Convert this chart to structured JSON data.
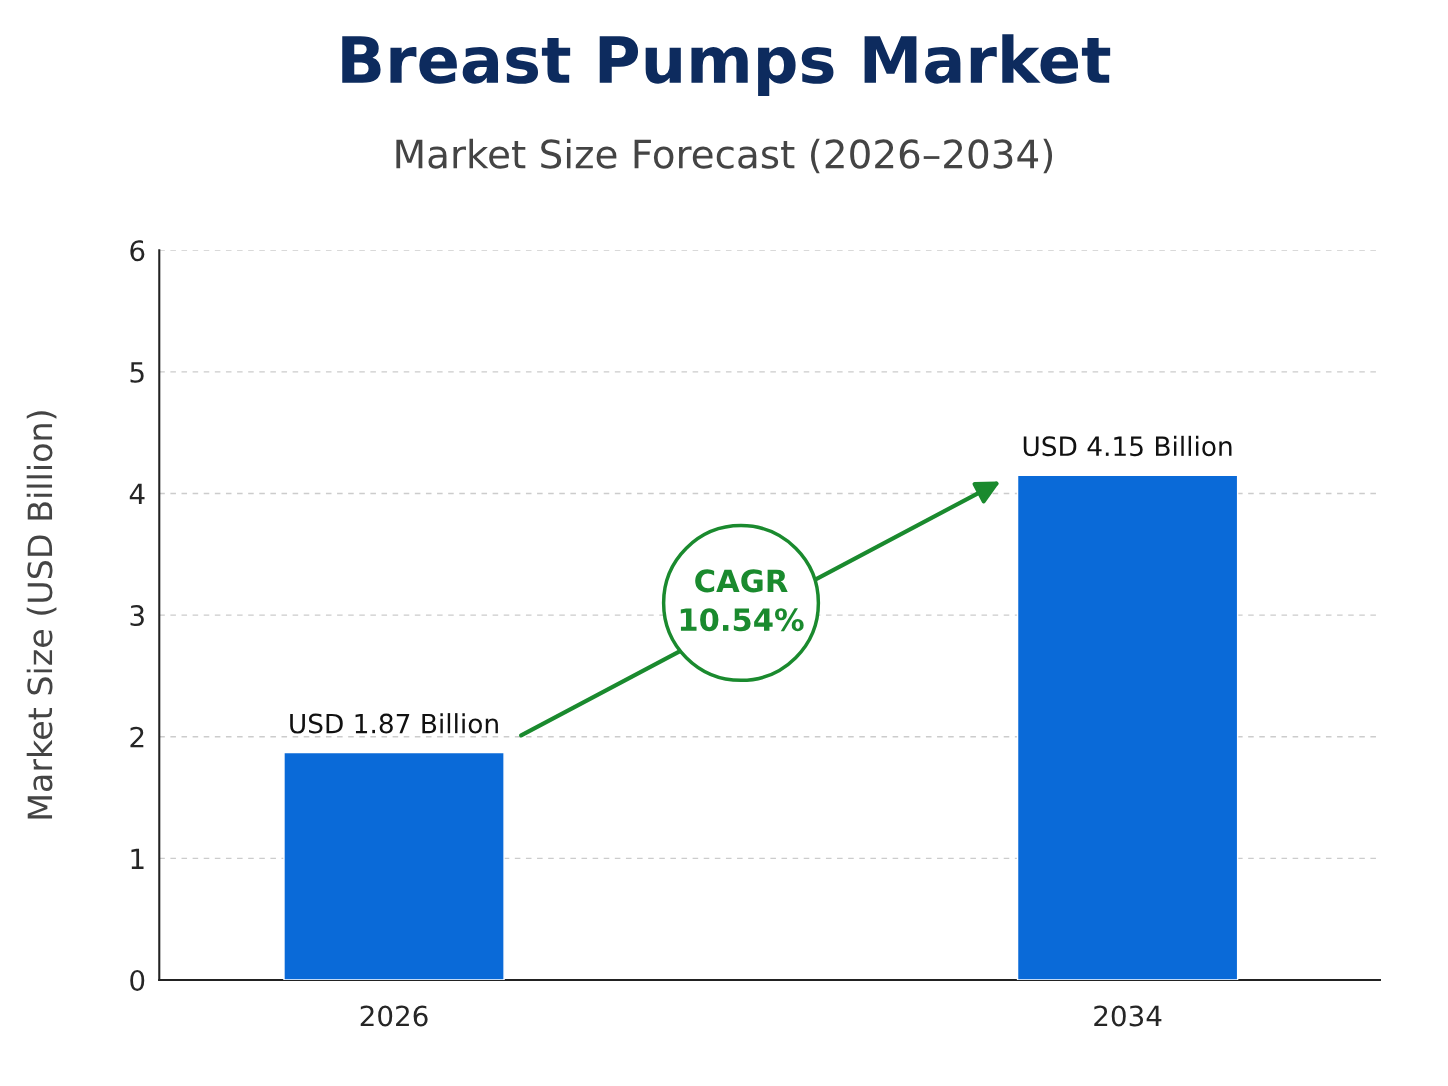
{
  "chart_data": {
    "type": "bar",
    "title": "Breast Pumps Market",
    "subtitle": "Market Size Forecast (2026–2034)",
    "ylabel": "Market Size (USD Billion)",
    "categories": [
      "2026",
      "2034"
    ],
    "values": [
      1.87,
      4.15
    ],
    "value_labels": [
      "USD 1.87 Billion",
      "USD 4.15 Billion"
    ],
    "color": "#0a6ad8",
    "ylim": [
      0,
      6
    ],
    "yticks": [
      0,
      1,
      2,
      3,
      4,
      5,
      6
    ],
    "grid": "y",
    "annotations": [
      "CAGR\n10.54%"
    ]
  }
}
